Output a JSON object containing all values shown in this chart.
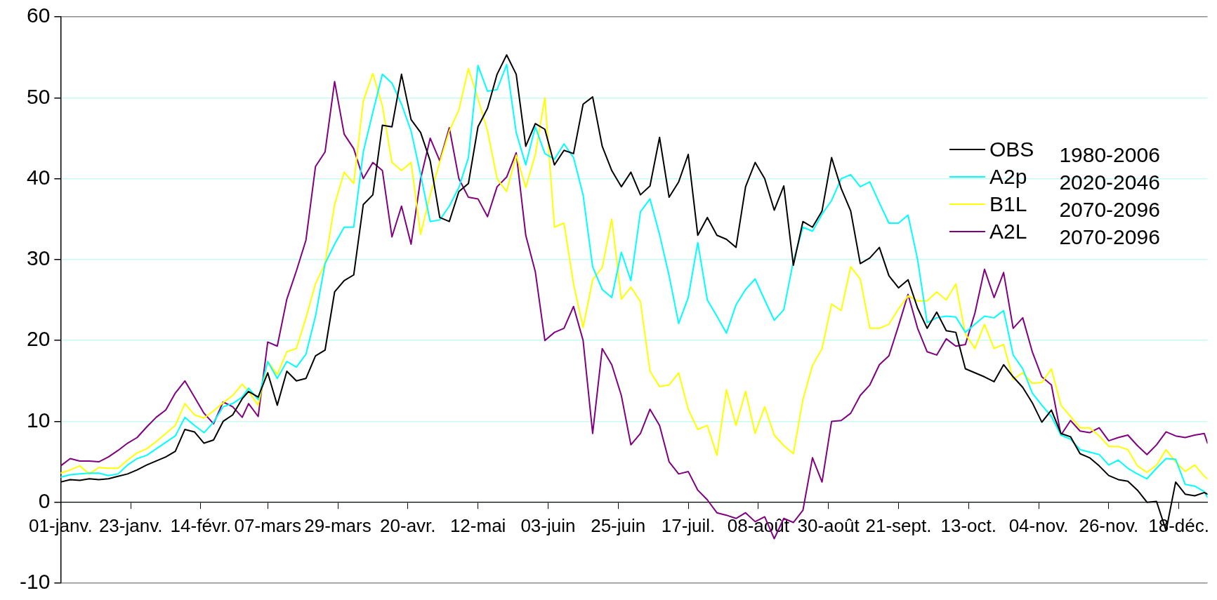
{
  "chart_data": {
    "type": "line",
    "x": [
      "--01-01",
      "--01-04",
      "--01-07",
      "--01-10",
      "--01-13",
      "--01-16",
      "--01-19",
      "--01-22",
      "--01-25",
      "--01-28",
      "--01-31",
      "--02-03",
      "--02-06",
      "--02-09",
      "--02-12",
      "--02-15",
      "--02-18",
      "--02-21",
      "--02-24",
      "--02-27",
      "--03-01",
      "--03-04",
      "--03-07",
      "--03-10",
      "--03-13",
      "--03-16",
      "--03-19",
      "--03-22",
      "--03-25",
      "--03-28",
      "--03-31",
      "--04-03",
      "--04-06",
      "--04-09",
      "--04-12",
      "--04-15",
      "--04-18",
      "--04-21",
      "--04-24",
      "--04-27",
      "--04-30",
      "--05-03",
      "--05-06",
      "--05-09",
      "--05-12",
      "--05-15",
      "--05-18",
      "--05-21",
      "--05-24",
      "--05-27",
      "--05-30",
      "--06-02",
      "--06-05",
      "--06-08",
      "--06-11",
      "--06-14",
      "--06-17",
      "--06-20",
      "--06-23",
      "--06-26",
      "--06-29",
      "--07-02",
      "--07-05",
      "--07-08",
      "--07-11",
      "--07-14",
      "--07-17",
      "--07-20",
      "--07-23",
      "--07-26",
      "--07-29",
      "--08-01",
      "--08-04",
      "--08-07",
      "--08-10",
      "--08-13",
      "--08-16",
      "--08-19",
      "--08-22",
      "--08-25",
      "--08-28",
      "--08-31",
      "--09-03",
      "--09-06",
      "--09-09",
      "--09-12",
      "--09-15",
      "--09-18",
      "--09-21",
      "--09-24",
      "--09-27",
      "--09-30",
      "--10-03",
      "--10-06",
      "--10-09",
      "--10-12",
      "--10-15",
      "--10-18",
      "--10-21",
      "--10-24",
      "--10-27",
      "--10-30",
      "--11-02",
      "--11-05",
      "--11-08",
      "--11-11",
      "--11-14",
      "--11-17",
      "--11-20",
      "--11-23",
      "--11-26",
      "--11-29",
      "--12-02",
      "--12-05",
      "--12-08",
      "--12-11",
      "--12-14",
      "--12-17",
      "--12-20",
      "--12-23",
      "--12-26",
      "--12-27"
    ],
    "series": [
      {
        "name": "OBS",
        "color": "#000000",
        "values": [
          2.5,
          2.8,
          2.7,
          2.9,
          2.8,
          2.9,
          3.2,
          3.5,
          4.0,
          4.6,
          5.1,
          5.6,
          6.3,
          9.0,
          8.7,
          7.3,
          7.7,
          10.0,
          10.8,
          12.8,
          13.7,
          13.0,
          16.0,
          12.0,
          16.2,
          15.0,
          15.3,
          18.1,
          18.8,
          26.0,
          27.4,
          28.1,
          36.8,
          38.0,
          46.6,
          46.4,
          52.9,
          47.3,
          45.7,
          42.2,
          35.2,
          34.7,
          38.4,
          39.4,
          46.4,
          48.7,
          52.9,
          55.3,
          52.9,
          44.0,
          46.8,
          46.1,
          41.7,
          43.5,
          43.1,
          49.2,
          50.1,
          44.0,
          41,
          39,
          40.8,
          38,
          39.1,
          45.1,
          37.7,
          39.6,
          43,
          33,
          35.2,
          33,
          32.5,
          31.5,
          39,
          42,
          40,
          36.1,
          39.1,
          29.3,
          34.7,
          34,
          36,
          42.6,
          38.8,
          36,
          29.5,
          30.2,
          31.5,
          28,
          26.5,
          27.5,
          24,
          21.5,
          23.5,
          21.2,
          21,
          16.5,
          16,
          15.5,
          14.9,
          17,
          15.5,
          14.2,
          12.3,
          9.9,
          11.4,
          8.5,
          8.1,
          6.0,
          5.5,
          4.5,
          3.3,
          2.8,
          2.6,
          1.5,
          0.0,
          0.1,
          -3.5,
          2.5,
          1.0,
          0.8,
          1.2,
          1.0
        ]
      },
      {
        "name": "A2p",
        "color": "#00ffff",
        "values": [
          3.1,
          3.4,
          3.5,
          3.6,
          3.6,
          3.3,
          3.5,
          4.6,
          5.4,
          5.8,
          6.6,
          7.4,
          8.2,
          10.5,
          9.5,
          8.6,
          9.9,
          11.8,
          12.2,
          13.0,
          14.1,
          12.7,
          17.4,
          15.3,
          17.4,
          16.7,
          18.3,
          23.0,
          29.5,
          31.9,
          34.0,
          34.0,
          43.3,
          48.2,
          52.9,
          51.8,
          49.2,
          45.9,
          40.5,
          34.7,
          34.9,
          36.6,
          38.9,
          42.6,
          54,
          50.8,
          51.0,
          54.1,
          45.7,
          41.7,
          46.4,
          43.1,
          42.4,
          44.3,
          42.6,
          38,
          29.1,
          26.3,
          25.3,
          30.9,
          27.4,
          35.9,
          37.5,
          33.1,
          28,
          22.1,
          25.3,
          32.1,
          25,
          23,
          20.9,
          24.4,
          26.3,
          27.6,
          25,
          22.5,
          23.8,
          29.8,
          34,
          33.5,
          35.6,
          37.3,
          40,
          40.5,
          39,
          39.6,
          37,
          34.5,
          34.5,
          35.5,
          30,
          22.2,
          22.8,
          23,
          22.9,
          21,
          22,
          23,
          22.8,
          23.7,
          18.2,
          16.5,
          13.5,
          12,
          10.6,
          8.3,
          7.8,
          6.5,
          6.2,
          5.9,
          4.6,
          5.2,
          4.2,
          3.5,
          2.9,
          4.2,
          5.4,
          5.3,
          2.2,
          2.0,
          1.3,
          0.6
        ]
      },
      {
        "name": "B1L",
        "color": "#ffff00",
        "values": [
          3.6,
          4.0,
          4.5,
          3.5,
          4.3,
          4.2,
          4.2,
          5.2,
          6.1,
          6.6,
          7.5,
          8.5,
          9.5,
          12.2,
          10.8,
          10.4,
          11.3,
          12.3,
          13.2,
          14.6,
          13.7,
          12,
          17.4,
          15.8,
          18.6,
          19,
          22.8,
          27,
          29.5,
          36.8,
          40.8,
          39.4,
          49.6,
          53,
          49,
          42,
          41,
          42,
          33.1,
          38,
          42,
          45.9,
          48.5,
          53.6,
          49.9,
          45.9,
          40,
          38.4,
          42.9,
          38.9,
          43,
          50,
          34,
          34.5,
          27,
          21.6,
          27.5,
          29,
          35,
          25.1,
          26.6,
          24.8,
          16.2,
          14.3,
          14.5,
          16,
          11.5,
          9,
          9.5,
          5.8,
          13.9,
          9.5,
          13.7,
          8.5,
          11.8,
          8.3,
          7,
          6,
          12.7,
          16.9,
          19,
          24.5,
          23.7,
          29.1,
          27.6,
          21.5,
          21.5,
          22,
          23.9,
          25.5,
          24.9,
          24.9,
          26,
          25,
          27,
          20.8,
          19,
          22,
          19,
          19.5,
          15.2,
          16,
          14.7,
          14.8,
          16.5,
          12,
          10.6,
          9.2,
          9.2,
          8.2,
          6.9,
          6.9,
          6.5,
          4.5,
          3.7,
          4.6,
          6.5,
          5,
          3.8,
          4.6,
          3.2,
          2.9
        ]
      },
      {
        "name": "A2L",
        "color": "#800080",
        "values": [
          4.5,
          5.4,
          5.1,
          5.1,
          5.0,
          5.6,
          6.4,
          7.3,
          8.0,
          9.3,
          10.5,
          11.4,
          13.5,
          15.0,
          13.0,
          11.0,
          9.7,
          12.4,
          11.8,
          10.5,
          12.2,
          10.6,
          19.8,
          19.3,
          25.1,
          28.6,
          32.4,
          41.5,
          43.3,
          52,
          45.5,
          43.7,
          40,
          42,
          41,
          32.8,
          36.6,
          31.9,
          40,
          45,
          42.2,
          46.3,
          40,
          37.7,
          37.5,
          35.3,
          39,
          40.2,
          43.2,
          33,
          28.5,
          20,
          21,
          21.5,
          24.2,
          20,
          8.5,
          19,
          17,
          13.2,
          7.1,
          8.5,
          11.5,
          9.5,
          5,
          3.5,
          3.8,
          1.5,
          0.3,
          -1.3,
          -1.6,
          -2,
          -1.3,
          -2.4,
          -1.8,
          -4.5,
          -2,
          -2.5,
          -1,
          5.5,
          2.5,
          10.0,
          10.1,
          11,
          13.2,
          14.5,
          17,
          18.1,
          21.8,
          25.7,
          21.5,
          18.6,
          18.2,
          20.2,
          19.3,
          19.5,
          23.4,
          28.8,
          25.3,
          28.4,
          21.5,
          22.8,
          18.6,
          15.5,
          14.5,
          8.3,
          10.1,
          8.8,
          8.6,
          9.2,
          7.6,
          8.0,
          8.3,
          7.0,
          5.9,
          7.1,
          8.7,
          8.2,
          8.0,
          8.3,
          8.5,
          7.3
        ]
      }
    ],
    "xlim": [
      "--01-01",
      "--12-27"
    ],
    "xticks": [
      {
        "value": "--01-01",
        "label": "01-janv."
      },
      {
        "value": "--01-23",
        "label": "23-janv."
      },
      {
        "value": "--02-14",
        "label": "14-févr."
      },
      {
        "value": "--03-07",
        "label": "07-mars"
      },
      {
        "value": "--03-29",
        "label": "29-mars"
      },
      {
        "value": "--04-20",
        "label": "20-avr."
      },
      {
        "value": "--05-12",
        "label": "12-mai"
      },
      {
        "value": "--06-03",
        "label": "03-juin"
      },
      {
        "value": "--06-25",
        "label": "25-juin"
      },
      {
        "value": "--07-17",
        "label": "17-juil."
      },
      {
        "value": "--08-08",
        "label": "08-août"
      },
      {
        "value": "--08-30",
        "label": "30-août"
      },
      {
        "value": "--09-21",
        "label": "21-sept."
      },
      {
        "value": "--10-13",
        "label": "13-oct."
      },
      {
        "value": "--11-04",
        "label": "04-nov."
      },
      {
        "value": "--11-26",
        "label": "26-nov."
      },
      {
        "value": "--12-18",
        "label": "18-déc."
      }
    ],
    "ylim": [
      -10,
      60
    ],
    "yticks": [
      -10,
      0,
      10,
      20,
      30,
      40,
      50,
      60
    ],
    "grid": "y",
    "legend": "top right",
    "annotations": [
      "1980-2006",
      "2020-2046",
      "2070-2096",
      "2070-2096"
    ]
  }
}
